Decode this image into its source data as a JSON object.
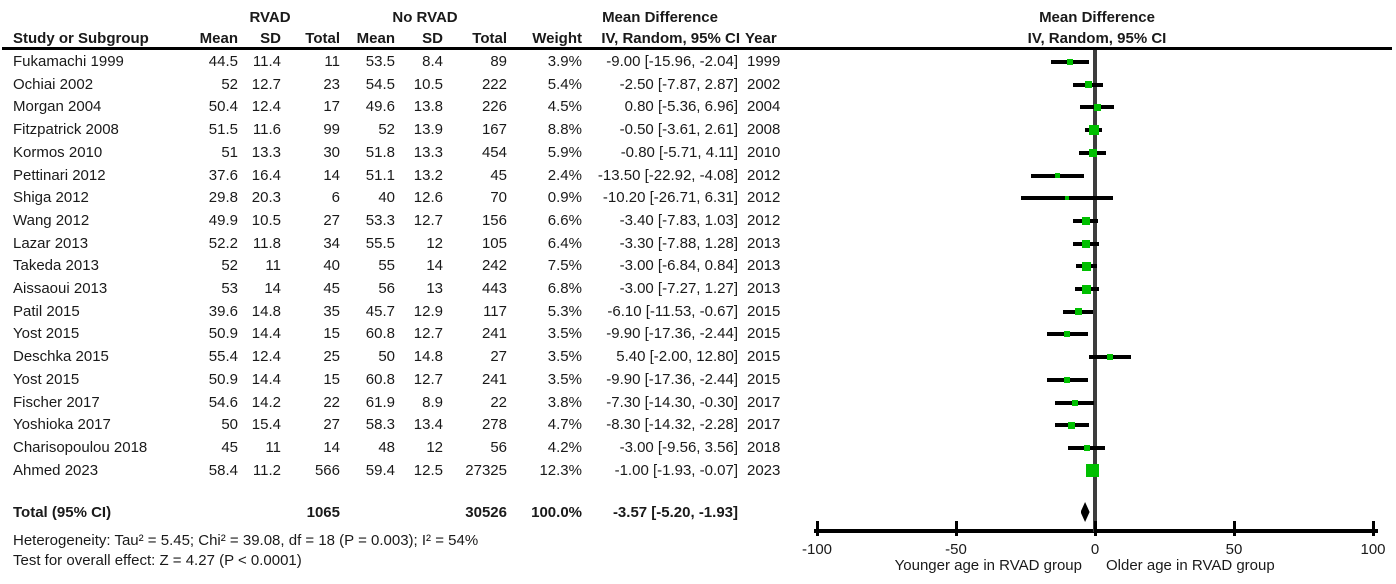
{
  "header": {
    "group1": "RVAD",
    "group2": "No RVAD",
    "study_col": "Study or Subgroup",
    "mean": "Mean",
    "sd": "SD",
    "total": "Total",
    "weight": "Weight",
    "md_line1": "Mean Difference",
    "md_line2": "IV, Random, 95% CI",
    "year": "Year"
  },
  "plot_header": {
    "line1": "Mean Difference",
    "line2": "IV, Random, 95% CI"
  },
  "totals": {
    "label": "Total (95% CI)",
    "total1": "1065",
    "total2": "30526",
    "weight": "100.0%",
    "ci_text": "-3.57 [-5.20, -1.93]",
    "est": -3.57,
    "lo": -5.2,
    "hi": -1.93
  },
  "footer": {
    "heterogeneity": "Heterogeneity: Tau² = 5.45; Chi² = 39.08, df = 18 (P = 0.003); I² = 54%",
    "overall_effect": "Test for overall effect: Z = 4.27 (P < 0.0001)"
  },
  "chart_data": {
    "type": "scatter",
    "title": "Mean Difference IV, Random, 95% CI (forest plot)",
    "xlabel_left": "Younger age in RVAD group",
    "xlabel_right": "Older age in RVAD group",
    "xlim": [
      -100,
      100
    ],
    "ticks": [
      -100,
      -50,
      0,
      50,
      100
    ],
    "grid": false,
    "marker_color": "#00bf00",
    "zero_line_color": "#3d3d3d",
    "studies": [
      {
        "name": "Fukamachi 1999",
        "mean1": "44.5",
        "sd1": "11.4",
        "total1": "11",
        "mean2": "53.5",
        "sd2": "8.4",
        "total2": "89",
        "weight": "3.9%",
        "ci_text": "-9.00 [-15.96, -2.04]",
        "year": "1999",
        "est": -9.0,
        "lo": -15.96,
        "hi": -2.04
      },
      {
        "name": "Ochiai 2002",
        "mean1": "52",
        "sd1": "12.7",
        "total1": "23",
        "mean2": "54.5",
        "sd2": "10.5",
        "total2": "222",
        "weight": "5.4%",
        "ci_text": "-2.50 [-7.87, 2.87]",
        "year": "2002",
        "est": -2.5,
        "lo": -7.87,
        "hi": 2.87
      },
      {
        "name": "Morgan 2004",
        "mean1": "50.4",
        "sd1": "12.4",
        "total1": "17",
        "mean2": "49.6",
        "sd2": "13.8",
        "total2": "226",
        "weight": "4.5%",
        "ci_text": "0.80 [-5.36, 6.96]",
        "year": "2004",
        "est": 0.8,
        "lo": -5.36,
        "hi": 6.96
      },
      {
        "name": "Fitzpatrick 2008",
        "mean1": "51.5",
        "sd1": "11.6",
        "total1": "99",
        "mean2": "52",
        "sd2": "13.9",
        "total2": "167",
        "weight": "8.8%",
        "ci_text": "-0.50 [-3.61, 2.61]",
        "year": "2008",
        "est": -0.5,
        "lo": -3.61,
        "hi": 2.61
      },
      {
        "name": "Kormos 2010",
        "mean1": "51",
        "sd1": "13.3",
        "total1": "30",
        "mean2": "51.8",
        "sd2": "13.3",
        "total2": "454",
        "weight": "5.9%",
        "ci_text": "-0.80 [-5.71, 4.11]",
        "year": "2010",
        "est": -0.8,
        "lo": -5.71,
        "hi": 4.11
      },
      {
        "name": "Pettinari 2012",
        "mean1": "37.6",
        "sd1": "16.4",
        "total1": "14",
        "mean2": "51.1",
        "sd2": "13.2",
        "total2": "45",
        "weight": "2.4%",
        "ci_text": "-13.50 [-22.92, -4.08]",
        "year": "2012",
        "est": -13.5,
        "lo": -22.92,
        "hi": -4.08
      },
      {
        "name": "Shiga 2012",
        "mean1": "29.8",
        "sd1": "20.3",
        "total1": "6",
        "mean2": "40",
        "sd2": "12.6",
        "total2": "70",
        "weight": "0.9%",
        "ci_text": "-10.20 [-26.71, 6.31]",
        "year": "2012",
        "est": -10.2,
        "lo": -26.71,
        "hi": 6.31
      },
      {
        "name": "Wang 2012",
        "mean1": "49.9",
        "sd1": "10.5",
        "total1": "27",
        "mean2": "53.3",
        "sd2": "12.7",
        "total2": "156",
        "weight": "6.6%",
        "ci_text": "-3.40 [-7.83, 1.03]",
        "year": "2012",
        "est": -3.4,
        "lo": -7.83,
        "hi": 1.03
      },
      {
        "name": "Lazar 2013",
        "mean1": "52.2",
        "sd1": "11.8",
        "total1": "34",
        "mean2": "55.5",
        "sd2": "12",
        "total2": "105",
        "weight": "6.4%",
        "ci_text": "-3.30 [-7.88, 1.28]",
        "year": "2013",
        "est": -3.3,
        "lo": -7.88,
        "hi": 1.28
      },
      {
        "name": "Takeda 2013",
        "mean1": "52",
        "sd1": "11",
        "total1": "40",
        "mean2": "55",
        "sd2": "14",
        "total2": "242",
        "weight": "7.5%",
        "ci_text": "-3.00 [-6.84, 0.84]",
        "year": "2013",
        "est": -3.0,
        "lo": -6.84,
        "hi": 0.84
      },
      {
        "name": "Aissaoui 2013",
        "mean1": "53",
        "sd1": "14",
        "total1": "45",
        "mean2": "56",
        "sd2": "13",
        "total2": "443",
        "weight": "6.8%",
        "ci_text": "-3.00 [-7.27, 1.27]",
        "year": "2013",
        "est": -3.0,
        "lo": -7.27,
        "hi": 1.27
      },
      {
        "name": "Patil 2015",
        "mean1": "39.6",
        "sd1": "14.8",
        "total1": "35",
        "mean2": "45.7",
        "sd2": "12.9",
        "total2": "117",
        "weight": "5.3%",
        "ci_text": "-6.10 [-11.53, -0.67]",
        "year": "2015",
        "est": -6.1,
        "lo": -11.53,
        "hi": -0.67
      },
      {
        "name": "Yost 2015",
        "mean1": "50.9",
        "sd1": "14.4",
        "total1": "15",
        "mean2": "60.8",
        "sd2": "12.7",
        "total2": "241",
        "weight": "3.5%",
        "ci_text": "-9.90 [-17.36, -2.44]",
        "year": "2015",
        "est": -9.9,
        "lo": -17.36,
        "hi": -2.44
      },
      {
        "name": "Deschka 2015",
        "mean1": "55.4",
        "sd1": "12.4",
        "total1": "25",
        "mean2": "50",
        "sd2": "14.8",
        "total2": "27",
        "weight": "3.5%",
        "ci_text": "5.40 [-2.00, 12.80]",
        "year": "2015",
        "est": 5.4,
        "lo": -2.0,
        "hi": 12.8
      },
      {
        "name": "Yost 2015",
        "mean1": "50.9",
        "sd1": "14.4",
        "total1": "15",
        "mean2": "60.8",
        "sd2": "12.7",
        "total2": "241",
        "weight": "3.5%",
        "ci_text": "-9.90 [-17.36, -2.44]",
        "year": "2015",
        "est": -9.9,
        "lo": -17.36,
        "hi": -2.44
      },
      {
        "name": "Fischer 2017",
        "mean1": "54.6",
        "sd1": "14.2",
        "total1": "22",
        "mean2": "61.9",
        "sd2": "8.9",
        "total2": "22",
        "weight": "3.8%",
        "ci_text": "-7.30 [-14.30, -0.30]",
        "year": "2017",
        "est": -7.3,
        "lo": -14.3,
        "hi": -0.3
      },
      {
        "name": "Yoshioka 2017",
        "mean1": "50",
        "sd1": "15.4",
        "total1": "27",
        "mean2": "58.3",
        "sd2": "13.4",
        "total2": "278",
        "weight": "4.7%",
        "ci_text": "-8.30 [-14.32, -2.28]",
        "year": "2017",
        "est": -8.3,
        "lo": -14.32,
        "hi": -2.28
      },
      {
        "name": "Charisopoulou 2018",
        "mean1": "45",
        "sd1": "11",
        "total1": "14",
        "mean2": "48",
        "sd2": "12",
        "total2": "56",
        "weight": "4.2%",
        "ci_text": "-3.00 [-9.56, 3.56]",
        "year": "2018",
        "est": -3.0,
        "lo": -9.56,
        "hi": 3.56
      },
      {
        "name": "Ahmed 2023",
        "mean1": "58.4",
        "sd1": "11.2",
        "total1": "566",
        "mean2": "59.4",
        "sd2": "12.5",
        "total2": "27325",
        "weight": "12.3%",
        "ci_text": "-1.00 [-1.93, -0.07]",
        "year": "2023",
        "est": -1.0,
        "lo": -1.93,
        "hi": -0.07
      }
    ],
    "total_diamond": {
      "est": -3.57,
      "lo": -5.2,
      "hi": -1.93
    }
  }
}
